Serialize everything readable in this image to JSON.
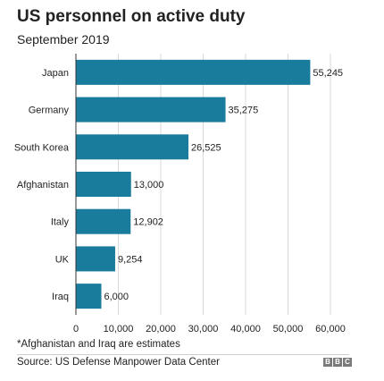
{
  "header": {
    "title": "US personnel on active duty",
    "subtitle": "September 2019"
  },
  "footer": {
    "note": "*Afghanistan and Iraq are estimates",
    "source": "Source: US Defense Manpower Data Center",
    "logo_letters": [
      "B",
      "B",
      "C"
    ]
  },
  "colors": {
    "bar": "#1a7c9c",
    "grid": "#d9d9d9",
    "text": "#222222"
  },
  "chart_data": {
    "type": "bar",
    "orientation": "horizontal",
    "title": "US personnel on active duty",
    "subtitle": "September 2019",
    "categories": [
      "Japan",
      "Germany",
      "South Korea",
      "Afghanistan",
      "Italy",
      "UK",
      "Iraq"
    ],
    "values": [
      55245,
      35275,
      26525,
      13000,
      12902,
      9254,
      6000
    ],
    "data_labels": [
      "55,245",
      "35,275",
      "26,525",
      "13,000",
      "12,902",
      "9,254",
      "6,000"
    ],
    "xlim": [
      0,
      60000
    ],
    "xticks": [
      0,
      10000,
      20000,
      30000,
      40000,
      50000,
      60000
    ],
    "xtick_labels": [
      "0",
      "10,000",
      "20,000",
      "30,000",
      "40,000",
      "50,000",
      "60,000"
    ],
    "grid": true
  }
}
